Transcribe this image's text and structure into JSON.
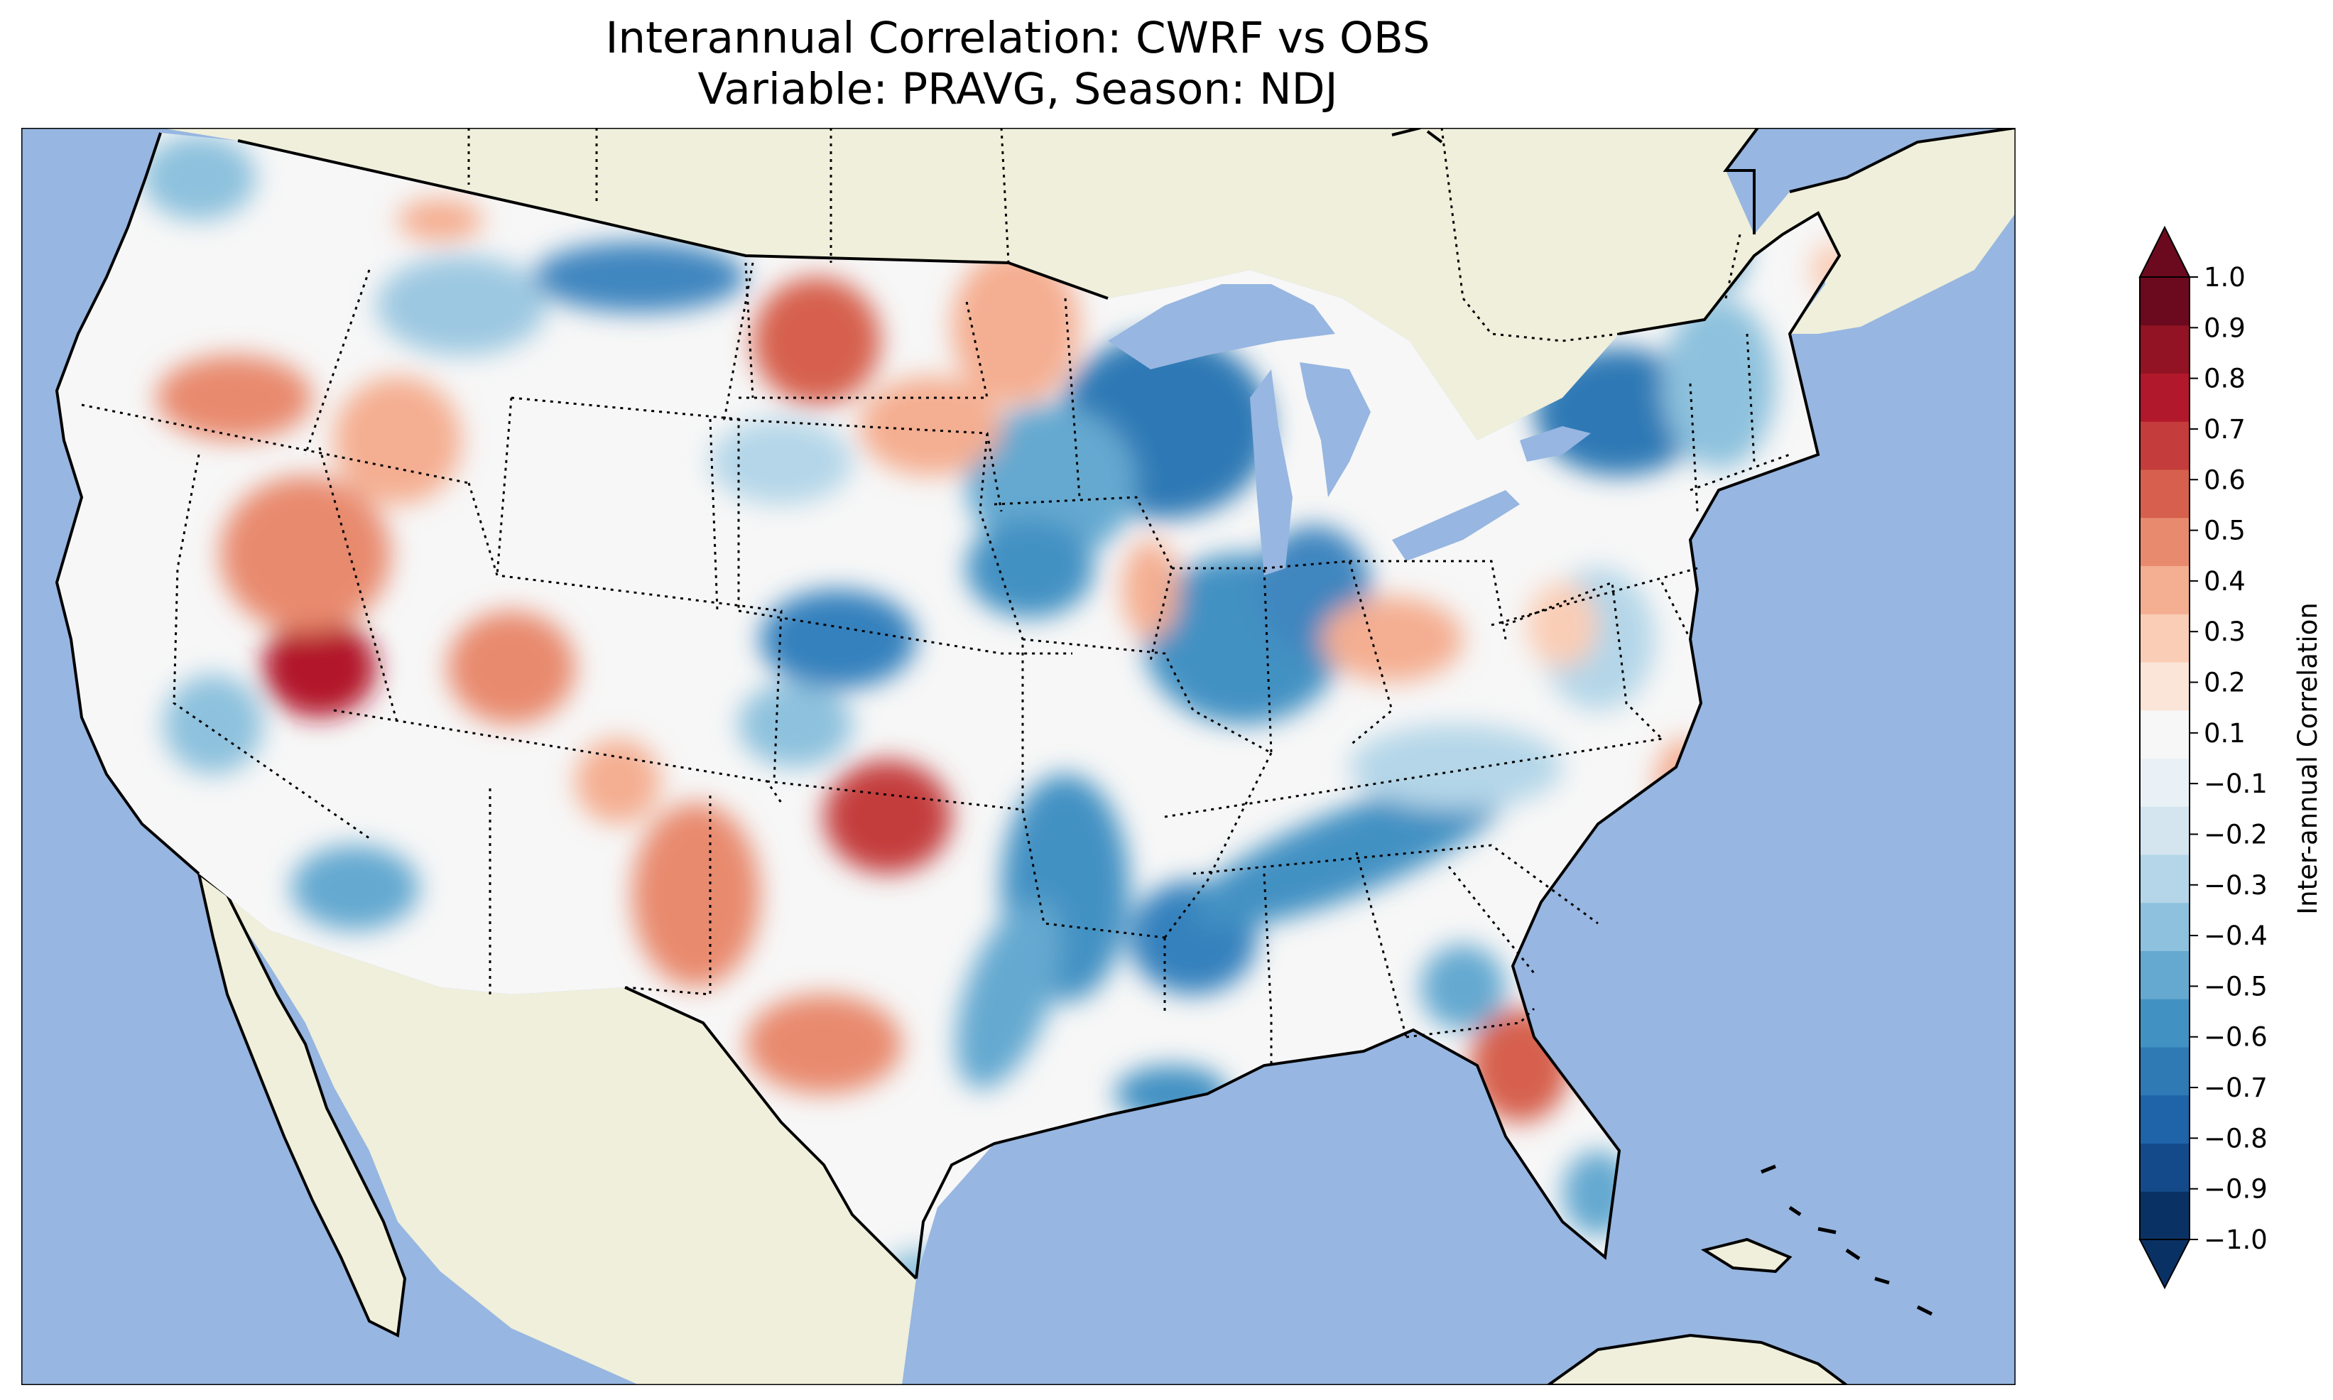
{
  "title_line1": "Interannual Correlation: CWRF vs OBS",
  "title_line2": "Variable: PRAVG, Season: NDJ",
  "colorbar": {
    "label": "Inter-annual Correlation",
    "ticks": [
      "1.0",
      "0.9",
      "0.8",
      "0.7",
      "0.6",
      "0.5",
      "0.4",
      "0.3",
      "0.2",
      "0.1",
      "−0.1",
      "−0.2",
      "−0.3",
      "−0.4",
      "−0.5",
      "−0.6",
      "−0.7",
      "−0.8",
      "−0.9",
      "−1.0"
    ],
    "colors": [
      "#0a3163",
      "#144a8a",
      "#1f63a8",
      "#2f79b5",
      "#4291c3",
      "#65a9d0",
      "#8dc1dd",
      "#b4d6e8",
      "#d4e5f0",
      "#eaf1f6",
      "#f7f7f7",
      "#fbe5d8",
      "#f9cdb6",
      "#f4ae91",
      "#e88a6e",
      "#d6604d",
      "#c43c3c",
      "#b2182b",
      "#911324",
      "#6b0a1e"
    ],
    "extend": "both"
  },
  "map": {
    "colors": {
      "ocean": "#97b6e1",
      "land": "#efefdb",
      "border": "#000000"
    },
    "variable": "PRAVG",
    "season": "NDJ"
  }
}
